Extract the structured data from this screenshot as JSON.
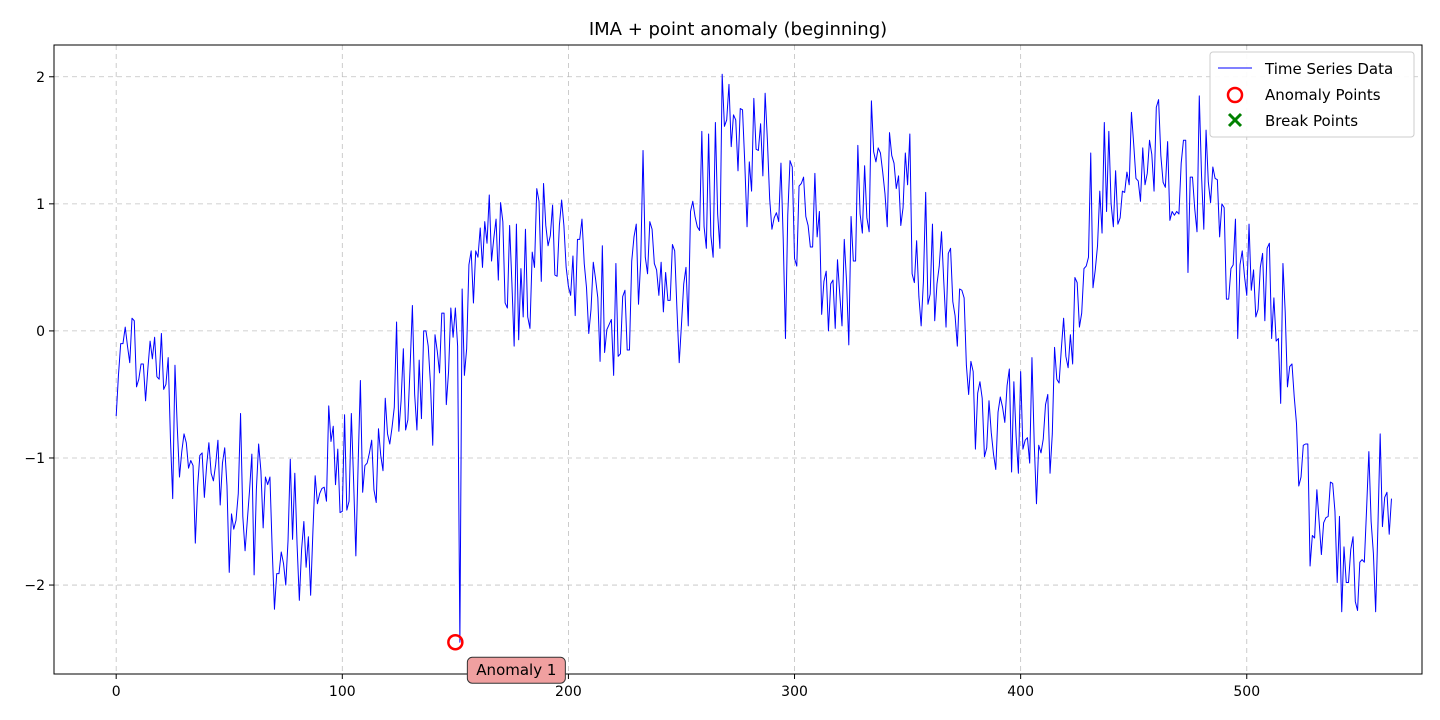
{
  "chart_data": {
    "type": "line",
    "title": "IMA + point anomaly (beginning)",
    "xlabel": "",
    "ylabel": "",
    "xlim": [
      -27.5,
      577.5
    ],
    "ylim": [
      -2.7,
      2.25
    ],
    "xticks": [
      0,
      100,
      200,
      300,
      400,
      500
    ],
    "yticks": [
      -2,
      -1,
      0,
      1,
      2
    ],
    "xtick_labels": [
      "0",
      "100",
      "200",
      "300",
      "400",
      "500"
    ],
    "ytick_labels": [
      "−2",
      "−1",
      "0",
      "1",
      "2"
    ],
    "grid": true,
    "legend_position": "top-right",
    "series": [
      {
        "name": "Time Series Data",
        "color": "#0000ff",
        "x_start": 0,
        "x_step": 1,
        "values": [
          -0.67,
          -0.35,
          -0.1,
          -0.1,
          0.03,
          -0.12,
          -0.25,
          0.1,
          0.08,
          -0.44,
          -0.38,
          -0.26,
          -0.26,
          -0.55,
          -0.3,
          -0.08,
          -0.22,
          -0.05,
          -0.36,
          -0.38,
          -0.02,
          -0.46,
          -0.42,
          -0.21,
          -0.85,
          -1.32,
          -0.27,
          -0.75,
          -1.15,
          -0.95,
          -0.81,
          -0.88,
          -1.08,
          -1.02,
          -1.06,
          -1.67,
          -1.23,
          -0.98,
          -0.96,
          -1.31,
          -1.06,
          -0.88,
          -1.12,
          -1.18,
          -1.05,
          -0.86,
          -1.37,
          -1.04,
          -0.92,
          -1.22,
          -1.9,
          -1.44,
          -1.56,
          -1.49,
          -1.28,
          -0.65,
          -1.46,
          -1.73,
          -1.49,
          -1.25,
          -0.97,
          -1.92,
          -1.25,
          -0.89,
          -1.1,
          -1.55,
          -1.15,
          -1.21,
          -1.15,
          -1.72,
          -2.19,
          -1.91,
          -1.91,
          -1.74,
          -1.83,
          -2.0,
          -1.65,
          -1.01,
          -1.64,
          -1.12,
          -1.68,
          -2.12,
          -1.72,
          -1.5,
          -1.86,
          -1.62,
          -2.08,
          -1.58,
          -1.14,
          -1.36,
          -1.28,
          -1.24,
          -1.23,
          -1.34,
          -0.59,
          -0.87,
          -0.75,
          -1.21,
          -0.93,
          -1.43,
          -1.42,
          -0.66,
          -1.41,
          -1.34,
          -0.65,
          -1.18,
          -1.77,
          -1.05,
          -0.39,
          -1.27,
          -1.06,
          -1.04,
          -0.96,
          -0.86,
          -1.25,
          -1.35,
          -0.77,
          -0.98,
          -1.1,
          -0.53,
          -0.81,
          -0.89,
          -0.76,
          -0.6,
          0.07,
          -0.79,
          -0.55,
          -0.14,
          -0.78,
          -0.7,
          -0.28,
          0.2,
          -0.5,
          -0.78,
          -0.23,
          -0.69,
          0.0,
          0.0,
          -0.12,
          -0.42,
          -0.9,
          -0.03,
          -0.16,
          -0.33,
          0.14,
          0.14,
          -0.58,
          -0.32,
          0.18,
          -0.05,
          0.18,
          -0.12,
          -2.45,
          0.33,
          -0.35,
          -0.14,
          0.52,
          0.63,
          0.22,
          0.63,
          0.58,
          0.81,
          0.5,
          0.86,
          0.69,
          1.07,
          0.55,
          0.73,
          0.88,
          0.4,
          1.01,
          0.86,
          0.22,
          0.18,
          0.83,
          0.38,
          -0.12,
          0.84,
          -0.07,
          0.49,
          0.11,
          0.8,
          0.11,
          0.02,
          0.62,
          0.5,
          1.12,
          1.02,
          0.39,
          1.16,
          0.83,
          0.67,
          0.75,
          0.99,
          0.44,
          0.43,
          0.83,
          1.03,
          0.83,
          0.5,
          0.35,
          0.28,
          0.59,
          0.12,
          0.72,
          0.72,
          0.88,
          0.53,
          0.34,
          -0.02,
          0.17,
          0.54,
          0.41,
          0.26,
          -0.24,
          0.67,
          -0.17,
          0.01,
          0.05,
          0.09,
          -0.35,
          0.53,
          -0.2,
          -0.18,
          0.27,
          0.32,
          -0.15,
          -0.15,
          0.55,
          0.74,
          0.84,
          0.21,
          0.56,
          1.42,
          0.58,
          0.45,
          0.86,
          0.8,
          0.53,
          0.48,
          0.28,
          0.54,
          0.15,
          0.46,
          0.24,
          0.24,
          0.68,
          0.63,
          0.17,
          -0.25,
          0.05,
          0.37,
          0.5,
          0.04,
          0.94,
          1.02,
          0.9,
          0.82,
          0.79,
          1.57,
          0.82,
          0.65,
          1.55,
          0.75,
          0.58,
          1.64,
          0.92,
          0.65,
          2.02,
          1.61,
          1.66,
          1.94,
          1.45,
          1.7,
          1.66,
          1.26,
          1.75,
          1.74,
          1.32,
          0.82,
          1.33,
          1.1,
          1.83,
          1.43,
          1.42,
          1.63,
          1.22,
          1.87,
          1.5,
          1.04,
          0.8,
          0.89,
          0.93,
          0.86,
          1.32,
          0.72,
          -0.06,
          0.91,
          1.34,
          1.29,
          0.57,
          0.51,
          1.14,
          1.16,
          1.21,
          0.9,
          0.83,
          0.66,
          0.66,
          1.24,
          0.74,
          0.94,
          0.13,
          0.39,
          0.47,
          0.0,
          0.37,
          0.4,
          0.02,
          0.56,
          0.29,
          0.04,
          0.72,
          0.39,
          -0.11,
          0.9,
          0.55,
          0.55,
          1.46,
          0.92,
          0.77,
          1.3,
          0.89,
          0.78,
          1.81,
          1.41,
          1.33,
          1.44,
          1.4,
          1.25,
          1.08,
          0.82,
          1.56,
          1.38,
          1.32,
          1.12,
          1.22,
          0.83,
          0.97,
          1.4,
          1.15,
          1.55,
          0.45,
          0.38,
          0.71,
          0.27,
          0.04,
          0.39,
          1.09,
          0.21,
          0.29,
          0.84,
          0.08,
          0.37,
          0.51,
          0.78,
          0.39,
          0.03,
          0.61,
          0.65,
          0.23,
          0.12,
          -0.12,
          0.33,
          0.32,
          0.26,
          -0.27,
          -0.5,
          -0.24,
          -0.32,
          -0.93,
          -0.49,
          -0.4,
          -0.53,
          -0.99,
          -0.92,
          -0.55,
          -0.8,
          -0.97,
          -1.09,
          -0.64,
          -0.52,
          -0.6,
          -0.72,
          -0.43,
          -0.3,
          -1.11,
          -0.4,
          -0.83,
          -1.12,
          -0.32,
          -0.93,
          -0.86,
          -0.84,
          -1.04,
          -0.21,
          -0.88,
          -1.36,
          -0.9,
          -0.96,
          -0.85,
          -0.58,
          -0.5,
          -1.12,
          -0.81,
          -0.13,
          -0.38,
          -0.41,
          -0.14,
          0.1,
          -0.2,
          -0.29,
          -0.03,
          -0.26,
          0.42,
          0.38,
          0.03,
          0.14,
          0.49,
          0.51,
          0.58,
          1.4,
          0.34,
          0.48,
          0.67,
          1.1,
          0.77,
          1.64,
          0.94,
          1.57,
          1.0,
          0.82,
          1.26,
          0.84,
          0.89,
          1.1,
          1.09,
          1.25,
          1.15,
          1.72,
          1.47,
          1.2,
          1.18,
          1.02,
          1.44,
          1.15,
          1.24,
          1.5,
          1.39,
          1.1,
          1.76,
          1.82,
          1.38,
          1.17,
          1.13,
          1.49,
          0.87,
          0.94,
          0.91,
          0.94,
          0.92,
          1.32,
          1.5,
          1.5,
          0.46,
          1.21,
          1.21,
          0.96,
          0.78,
          1.85,
          1.22,
          0.8,
          1.58,
          1.17,
          1.01,
          1.29,
          1.2,
          1.19,
          0.74,
          1.0,
          0.97,
          0.25,
          0.25,
          0.49,
          0.52,
          0.88,
          -0.06,
          0.52,
          0.63,
          0.43,
          0.28,
          0.84,
          0.32,
          0.48,
          0.11,
          0.17,
          0.5,
          0.61,
          0.08,
          0.65,
          0.69,
          -0.06,
          0.26,
          -0.08,
          -0.06,
          -0.57,
          0.53,
          0.15,
          -0.44,
          -0.28,
          -0.26,
          -0.52,
          -0.73,
          -1.22,
          -1.15,
          -0.9,
          -0.89,
          -0.89,
          -1.85,
          -1.61,
          -1.63,
          -1.25,
          -1.5,
          -1.76,
          -1.51,
          -1.47,
          -1.46,
          -1.19,
          -1.2,
          -1.42,
          -1.98,
          -1.46,
          -2.21,
          -1.7,
          -1.98,
          -1.98,
          -1.72,
          -1.62,
          -2.13,
          -2.2,
          -1.82,
          -1.8,
          -1.82,
          -1.4,
          -0.95,
          -1.5,
          -1.75,
          -2.21,
          -1.54,
          -0.81,
          -1.54,
          -1.31,
          -1.27,
          -1.6,
          -1.32
        ]
      }
    ],
    "anomaly_points": {
      "name": "Anomaly Points",
      "color": "#ff0000",
      "marker": "circle-hollow",
      "points": [
        {
          "x": 150,
          "y": -2.45
        }
      ]
    },
    "break_points": {
      "name": "Break Points",
      "color": "#008000",
      "marker": "x",
      "points": []
    },
    "annotations": [
      {
        "text": "Anomaly 1",
        "x": 150,
        "y": -2.45,
        "box_color": "#f0a0a0",
        "border_color": "#333333"
      }
    ]
  }
}
